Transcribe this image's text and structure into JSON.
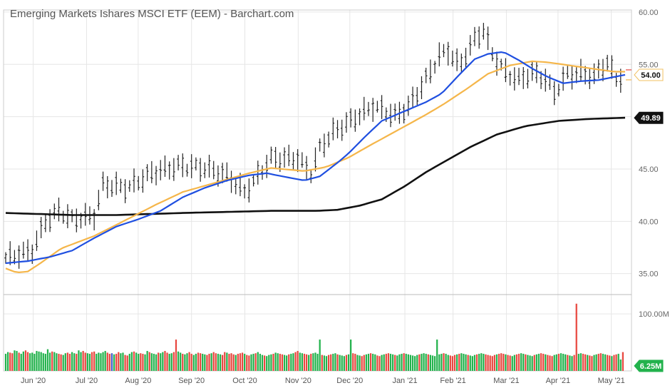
{
  "chart_data": {
    "type": "line",
    "title": "Emerging Markets Ishares MSCI ETF (EEM) - Barchart.com",
    "price_axis": {
      "min": 33,
      "max": 60.2,
      "ticks": [
        "60.00",
        "55.00",
        "45.00",
        "40.00",
        "35.00"
      ]
    },
    "volume_axis": {
      "min": 0,
      "max": 134,
      "ticks": [
        "100.00M"
      ]
    },
    "x_ticks": [
      "Jun '20",
      "Jul '20",
      "Aug '20",
      "Sep '20",
      "Oct '20",
      "Nov '20",
      "Dec '20",
      "Jan '21",
      "Feb '21",
      "Mar '21",
      "Apr '21",
      "May '21"
    ],
    "last_price": {
      "value": 54.0,
      "label": "54.00"
    },
    "ma200_last": {
      "value": 49.89,
      "label": "49.89"
    },
    "last_volume": {
      "value": 6.25,
      "label": "6.25M"
    },
    "colors": {
      "ma_fast": "#1f4fe0",
      "ma_slow": "#f5b64a",
      "ma_200": "#111111",
      "volume_up": "#22b24c",
      "volume_down": "#e8473f",
      "volume_neutral": "#3f5cc8",
      "bars": "#222222",
      "grid": "#e6e6e6"
    },
    "ma_fast": [
      [
        0,
        36
      ],
      [
        10,
        36.2
      ],
      [
        20,
        36.6
      ],
      [
        30,
        37.2
      ],
      [
        40,
        38.4
      ],
      [
        50,
        39.5
      ],
      [
        60,
        40.2
      ],
      [
        70,
        41
      ],
      [
        80,
        42.3
      ],
      [
        90,
        43.2
      ],
      [
        100,
        43.9
      ],
      [
        110,
        44.4
      ],
      [
        118,
        44.6
      ],
      [
        125,
        44.3
      ],
      [
        135,
        43.9
      ],
      [
        142,
        44.3
      ],
      [
        150,
        45.6
      ],
      [
        155,
        46.5
      ],
      [
        162,
        48
      ],
      [
        170,
        49.6
      ],
      [
        180,
        50.5
      ],
      [
        190,
        51.4
      ],
      [
        197,
        52.2
      ],
      [
        205,
        54
      ],
      [
        212,
        55.5
      ],
      [
        218,
        56
      ],
      [
        225,
        56.2
      ],
      [
        232,
        55.4
      ],
      [
        238,
        54.6
      ],
      [
        245,
        53.8
      ],
      [
        252,
        53.2
      ],
      [
        260,
        53.4
      ],
      [
        268,
        53.5
      ],
      [
        275,
        53.8
      ],
      [
        280,
        54
      ]
    ],
    "ma_slow": [
      [
        0,
        35.5
      ],
      [
        5,
        35.1
      ],
      [
        10,
        35.2
      ],
      [
        15,
        35.9
      ],
      [
        25,
        37.4
      ],
      [
        40,
        38.6
      ],
      [
        55,
        40.2
      ],
      [
        68,
        41.6
      ],
      [
        80,
        42.8
      ],
      [
        95,
        43.7
      ],
      [
        110,
        44.6
      ],
      [
        120,
        45.1
      ],
      [
        135,
        44.8
      ],
      [
        145,
        45.2
      ],
      [
        155,
        46.1
      ],
      [
        165,
        47.3
      ],
      [
        178,
        48.8
      ],
      [
        190,
        50.2
      ],
      [
        198,
        51.2
      ],
      [
        208,
        52.6
      ],
      [
        218,
        54.1
      ],
      [
        228,
        54.9
      ],
      [
        238,
        55.3
      ],
      [
        245,
        55.2
      ],
      [
        255,
        54.9
      ],
      [
        265,
        54.6
      ],
      [
        275,
        54.3
      ],
      [
        280,
        54.3
      ]
    ],
    "ma_200": [
      [
        0,
        40.8
      ],
      [
        30,
        40.6
      ],
      [
        50,
        40.6
      ],
      [
        80,
        40.8
      ],
      [
        100,
        40.9
      ],
      [
        120,
        41
      ],
      [
        140,
        41
      ],
      [
        150,
        41.1
      ],
      [
        160,
        41.5
      ],
      [
        170,
        42.1
      ],
      [
        180,
        43.3
      ],
      [
        190,
        44.7
      ],
      [
        200,
        45.9
      ],
      [
        210,
        47.1
      ],
      [
        222,
        48.3
      ],
      [
        235,
        49.1
      ],
      [
        250,
        49.6
      ],
      [
        265,
        49.8
      ],
      [
        280,
        49.9
      ]
    ],
    "ohlc_anchors": [
      [
        0,
        36.5
      ],
      [
        12,
        37.2
      ],
      [
        18,
        40
      ],
      [
        24,
        41
      ],
      [
        30,
        40.2
      ],
      [
        40,
        40.5
      ],
      [
        44,
        43.5
      ],
      [
        55,
        43.2
      ],
      [
        66,
        44.6
      ],
      [
        78,
        45.3
      ],
      [
        90,
        45.1
      ],
      [
        100,
        44.4
      ],
      [
        108,
        42.8
      ],
      [
        112,
        43.8
      ],
      [
        120,
        46
      ],
      [
        132,
        46
      ],
      [
        138,
        44.6
      ],
      [
        142,
        47
      ],
      [
        148,
        48.5
      ],
      [
        156,
        49.6
      ],
      [
        166,
        51
      ],
      [
        176,
        50.1
      ],
      [
        182,
        50.9
      ],
      [
        190,
        53.6
      ],
      [
        196,
        55.8
      ],
      [
        200,
        56.3
      ],
      [
        205,
        54.8
      ],
      [
        212,
        57.4
      ],
      [
        216,
        58.3
      ],
      [
        220,
        56
      ],
      [
        226,
        54.2
      ],
      [
        232,
        53.5
      ],
      [
        238,
        54.2
      ],
      [
        244,
        53.6
      ],
      [
        248,
        52.3
      ],
      [
        254,
        54
      ],
      [
        260,
        54.1
      ],
      [
        266,
        53.9
      ],
      [
        272,
        55.2
      ],
      [
        276,
        53.6
      ],
      [
        280,
        53.9
      ]
    ],
    "volume_levels": [
      30,
      33,
      32,
      31,
      36,
      35,
      32,
      30,
      34,
      36,
      33,
      31,
      32,
      30,
      35,
      34,
      33,
      31,
      30,
      38,
      32,
      34,
      33,
      31,
      30,
      29,
      28,
      31,
      32,
      30,
      33,
      31,
      30,
      36,
      33,
      35,
      32,
      31,
      30,
      33,
      34,
      30,
      32,
      31,
      33,
      35,
      32,
      30,
      31,
      29,
      30,
      33,
      31,
      32,
      28,
      27,
      30,
      33,
      34,
      32,
      30,
      31,
      30,
      29,
      35,
      33,
      31,
      30,
      29,
      32,
      31,
      33,
      35,
      32,
      30,
      31,
      33,
      36,
      34,
      32,
      30,
      29,
      31,
      33,
      30,
      28,
      30,
      32,
      31,
      30,
      29,
      28,
      30,
      31,
      33,
      31,
      30,
      29,
      28,
      33,
      32,
      30,
      31,
      29,
      28,
      30,
      31,
      32,
      30,
      28,
      27,
      29,
      30,
      31,
      33,
      30,
      28,
      27,
      26,
      28,
      29,
      30,
      32,
      31,
      30,
      29,
      28,
      27,
      29,
      30,
      31,
      33,
      35,
      32,
      31,
      30,
      29,
      28,
      30,
      31,
      32,
      30,
      29,
      28,
      27,
      26,
      28,
      29,
      30,
      31,
      29,
      28,
      27,
      26,
      28,
      29,
      30,
      31,
      30,
      28,
      27,
      26,
      28,
      29,
      30,
      31,
      30,
      29,
      27,
      26,
      28,
      29,
      30,
      31,
      30,
      29,
      28,
      27,
      29,
      30,
      31,
      30,
      29,
      28,
      27,
      26,
      28,
      29,
      30,
      31,
      30,
      29,
      28,
      27,
      26,
      28,
      29,
      30,
      31,
      30,
      28,
      27,
      26,
      28,
      29,
      30,
      31,
      30,
      29,
      28,
      27,
      26,
      28,
      29,
      30,
      31,
      30,
      29,
      28,
      27,
      26,
      28,
      29,
      30,
      31,
      30,
      29,
      28,
      27,
      26,
      28,
      29,
      30,
      31,
      30,
      29,
      28,
      27,
      26,
      28,
      29,
      30,
      31,
      30,
      29,
      28,
      27,
      26,
      28,
      29,
      30,
      31,
      30,
      29,
      28,
      27,
      26,
      28,
      29,
      30,
      31,
      30,
      29,
      28,
      27,
      26,
      28,
      29,
      30,
      31,
      30,
      29,
      28,
      27,
      26,
      28,
      29,
      30
    ]
  }
}
